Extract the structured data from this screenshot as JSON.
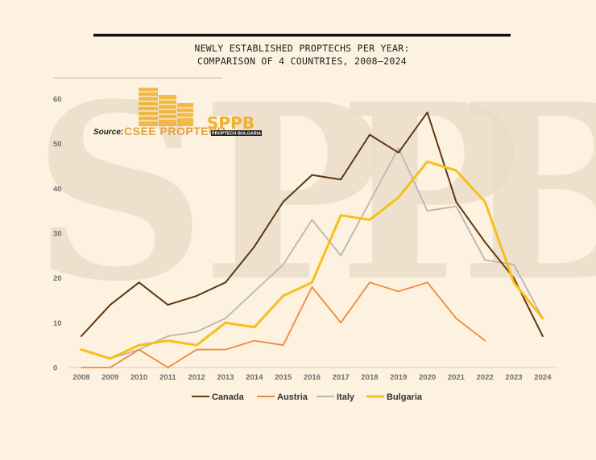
{
  "chart_data": {
    "type": "line",
    "title_lines": [
      "NEWLY ESTABLISHED PROPTECHS PER YEAR:",
      "COMPARISON OF 4 COUNTRIES, 2008–2024"
    ],
    "categories": [
      "2008",
      "2009",
      "2010",
      "2011",
      "2012",
      "2013",
      "2014",
      "2015",
      "2016",
      "2017",
      "2018",
      "2019",
      "2020",
      "2021",
      "2022",
      "2023",
      "2024"
    ],
    "yticks": [
      0,
      10,
      20,
      30,
      40,
      50,
      60
    ],
    "ylim": [
      0,
      60
    ],
    "series": [
      {
        "name": "Canada",
        "color": "#5e3713",
        "values": [
          7,
          14,
          19,
          14,
          16,
          19,
          27,
          37,
          43,
          42,
          52,
          48,
          57,
          37,
          28,
          20,
          7
        ]
      },
      {
        "name": "Austria",
        "color": "#ee8a3f",
        "values": [
          0,
          0,
          4,
          0,
          4,
          4,
          6,
          5,
          18,
          10,
          19,
          17,
          19,
          11,
          6,
          null,
          null
        ]
      },
      {
        "name": "Italy",
        "color": "#b9b6b1",
        "values": [
          4,
          2,
          4,
          7,
          8,
          11,
          17,
          23,
          33,
          25,
          37,
          49,
          35,
          36,
          24,
          23,
          11
        ]
      },
      {
        "name": "Bulgaria",
        "color": "#f6bf1b",
        "values": [
          4,
          2,
          5,
          6,
          5,
          10,
          9,
          16,
          19,
          34,
          33,
          38,
          46,
          44,
          37,
          19,
          11
        ]
      }
    ],
    "legend": "bottom",
    "source": {
      "label": "Source:",
      "brand": "CSEE PROPTECH",
      "partner": "SPPB",
      "partner_sub": "PROPTECH BULGARIA"
    },
    "watermark": [
      "S",
      "P",
      "P",
      "B"
    ]
  }
}
